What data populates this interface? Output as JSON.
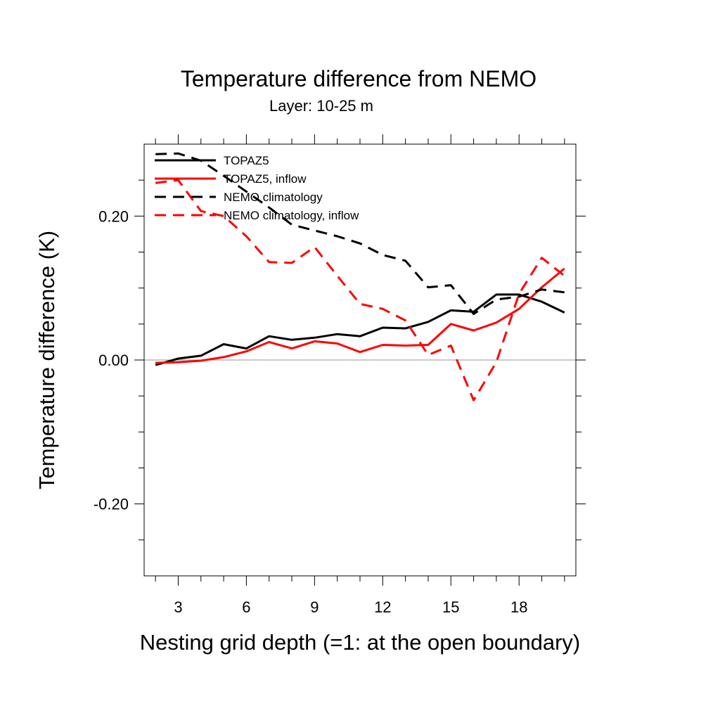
{
  "chart_data": {
    "type": "line",
    "title": "Temperature difference from NEMO",
    "subtitle": "Layer: 10-25 m",
    "xlabel": "Nesting grid depth (=1: at the open boundary)",
    "ylabel": "Temperature difference (K)",
    "xlim": [
      1.5,
      20.5
    ],
    "ylim": [
      -0.3,
      0.3
    ],
    "xticks": [
      3,
      6,
      9,
      12,
      15,
      18
    ],
    "xtick_labels": [
      "3",
      "6",
      "9",
      "12",
      "15",
      "18"
    ],
    "yticks": [
      -0.2,
      0.0,
      0.2
    ],
    "ytick_labels": [
      "-0.20",
      "0.00",
      "0.20"
    ],
    "grid": false,
    "zero_line": true,
    "legend_position": "top-left",
    "x": [
      2,
      3,
      4,
      5,
      6,
      7,
      8,
      9,
      10,
      11,
      12,
      13,
      14,
      15,
      16,
      17,
      18,
      19,
      20
    ],
    "series": [
      {
        "name": "TOPAZ5",
        "color": "#000000",
        "dash": "solid",
        "values": [
          -0.007,
          0.002,
          0.006,
          0.022,
          0.016,
          0.033,
          0.028,
          0.031,
          0.036,
          0.033,
          0.045,
          0.044,
          0.053,
          0.069,
          0.067,
          0.091,
          0.091,
          0.081,
          0.066
        ]
      },
      {
        "name": "TOPAZ5, inflow",
        "color": "#ff0000",
        "dash": "solid",
        "values": [
          -0.004,
          -0.003,
          -0.001,
          0.004,
          0.012,
          0.025,
          0.016,
          0.026,
          0.023,
          0.011,
          0.021,
          0.02,
          0.021,
          0.05,
          0.041,
          0.052,
          0.071,
          0.101,
          0.127
        ]
      },
      {
        "name": "NEMO climatology",
        "color": "#000000",
        "dash": "dashed",
        "values": [
          0.286,
          0.287,
          0.277,
          0.256,
          0.234,
          0.212,
          0.188,
          0.18,
          0.172,
          0.162,
          0.146,
          0.138,
          0.101,
          0.104,
          0.064,
          0.084,
          0.088,
          0.098,
          0.094
        ]
      },
      {
        "name": "NEMO climatology, inflow",
        "color": "#ff0000",
        "dash": "dashed",
        "values": [
          0.246,
          0.25,
          0.207,
          0.2,
          0.172,
          0.136,
          0.135,
          0.157,
          0.117,
          0.078,
          0.071,
          0.055,
          0.007,
          0.02,
          -0.056,
          -0.003,
          0.092,
          0.142,
          0.117
        ]
      }
    ]
  }
}
